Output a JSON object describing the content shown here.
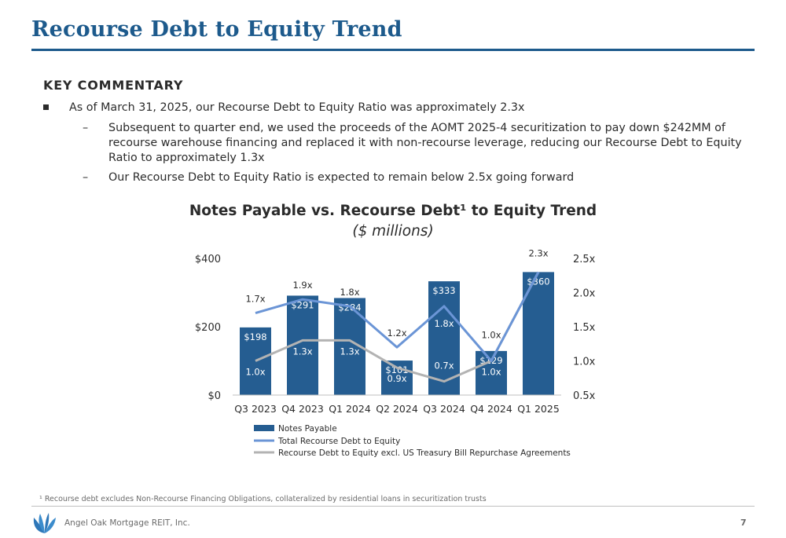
{
  "page": {
    "title": "Recourse Debt to Equity Trend",
    "commentary_heading": "KEY COMMENTARY",
    "bullet": "As of March 31, 2025, our Recourse Debt to Equity Ratio was approximately 2.3x",
    "sub_bullets": [
      "Subsequent to quarter end, we used the proceeds of the AOMT 2025-4 securitization to pay down $242MM of recourse warehouse financing and replaced it with non-recourse leverage, reducing our Recourse Debt to Equity Ratio to approximately 1.3x",
      "Our Recourse Debt to Equity Ratio is expected to remain below 2.5x going forward"
    ],
    "dash": "–",
    "footnote": "¹ Recourse debt excludes Non-Recourse Financing Obligations, collateralized by residential loans in securitization trusts",
    "company": "Angel Oak Mortgage REIT, Inc.",
    "page_number": "7"
  },
  "chart_data": {
    "type": "bar",
    "title": "Notes Payable vs. Recourse Debt¹ to Equity Trend",
    "subtitle": "($ millions)",
    "categories": [
      "Q3 2023",
      "Q4 2023",
      "Q1 2024",
      "Q2 2024",
      "Q3 2024",
      "Q4 2024",
      "Q1 2025"
    ],
    "y_left": {
      "ticks": [
        "$0",
        "$200",
        "$400"
      ],
      "tick_values": [
        0,
        200,
        400
      ],
      "range": [
        0,
        400
      ]
    },
    "y_right": {
      "ticks": [
        "0.5x",
        "1.0x",
        "1.5x",
        "2.0x",
        "2.5x"
      ],
      "tick_values": [
        0.5,
        1.0,
        1.5,
        2.0,
        2.5
      ],
      "range": [
        0.5,
        2.5
      ]
    },
    "series": [
      {
        "name": "Notes Payable",
        "type": "bar",
        "axis": "left",
        "color": "#255d91",
        "values": [
          198,
          291,
          284,
          101,
          333,
          129,
          360
        ],
        "labels": [
          "$198",
          "$291",
          "$284",
          "$101",
          "$333",
          "$129",
          "$360"
        ]
      },
      {
        "name": "Total Recourse Debt to Equity",
        "type": "line",
        "axis": "right",
        "color": "#6b95d6",
        "values": [
          1.7,
          1.9,
          1.8,
          1.2,
          1.8,
          1.0,
          2.3
        ],
        "labels": [
          "1.7x",
          "1.9x",
          "1.8x",
          "1.2x",
          "1.8x",
          "1.0x",
          "2.3x"
        ]
      },
      {
        "name": "Recourse Debt to Equity excl. US Treasury Bill Repurchase Agreements",
        "type": "line",
        "axis": "right",
        "color": "#b3b3b3",
        "values": [
          1.0,
          1.3,
          1.3,
          0.9,
          0.7,
          1.0,
          2.3
        ],
        "labels": [
          "1.0x",
          "1.3x",
          "1.3x",
          "0.9x",
          "0.7x",
          "1.0x",
          ""
        ]
      }
    ],
    "legend_position": "bottom",
    "grid": false
  }
}
